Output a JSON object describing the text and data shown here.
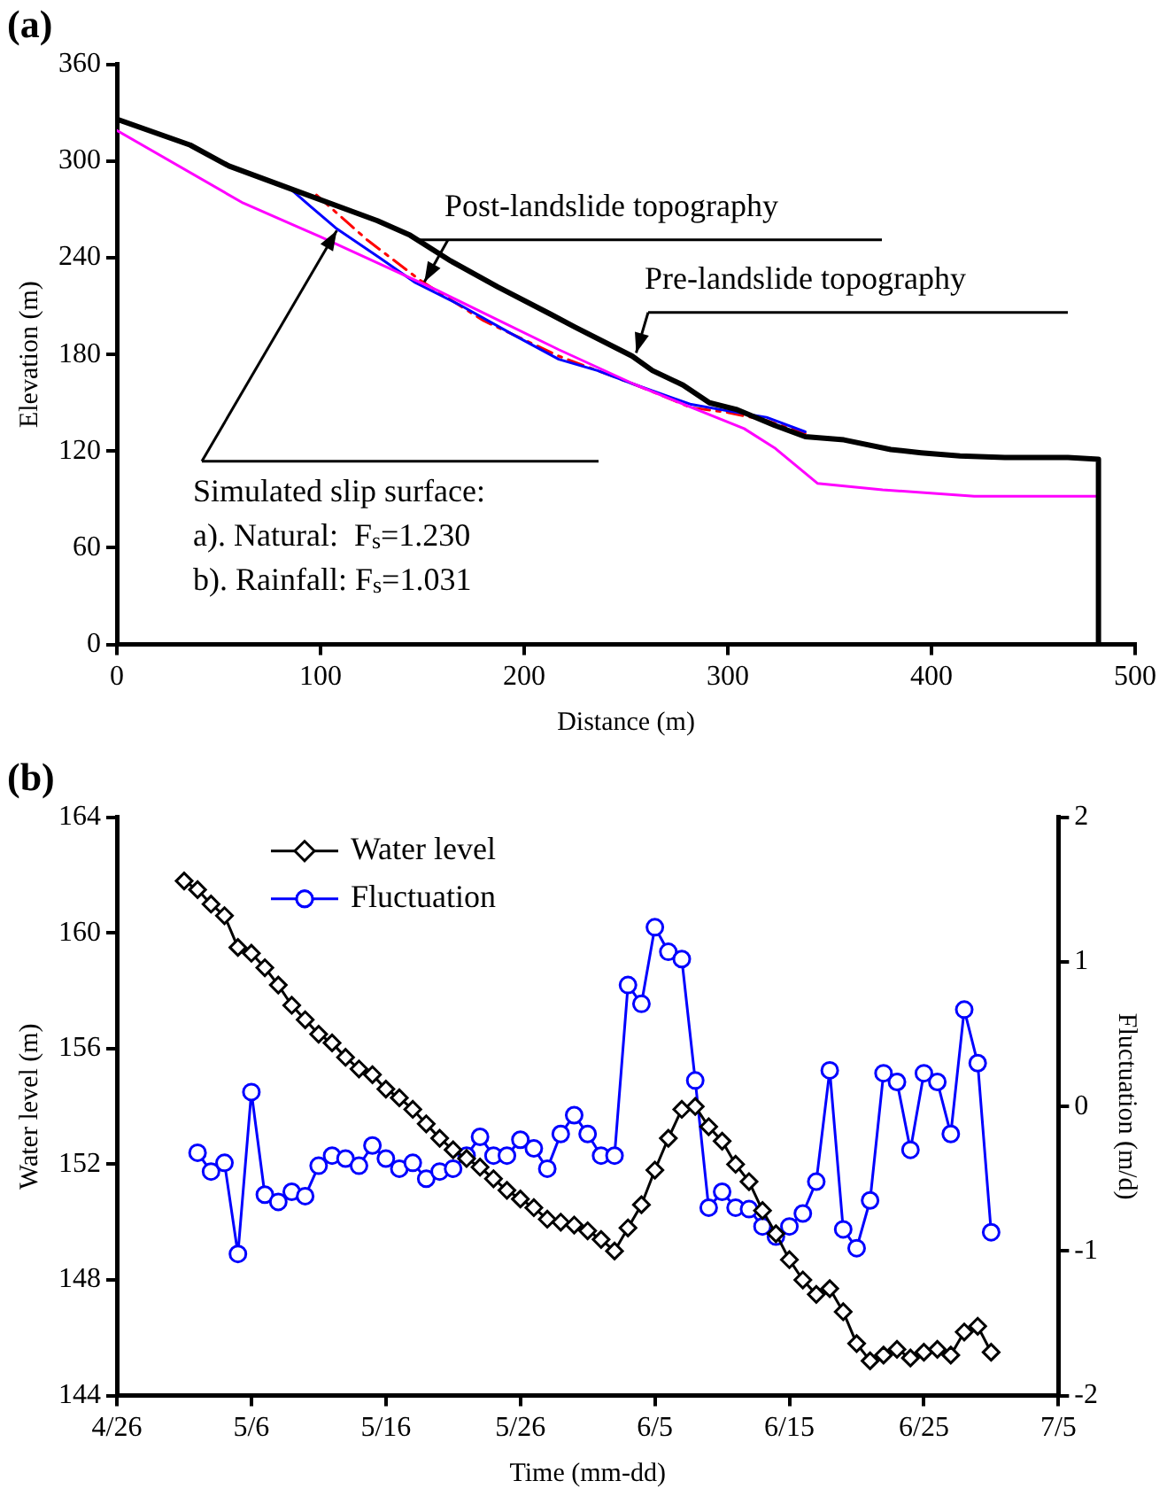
{
  "chart_data": [
    {
      "type": "line",
      "title": "(a)",
      "xlabel": "Distance (m)",
      "ylabel": "Elevation (m)",
      "xlim": [
        0,
        500
      ],
      "xticks": [
        0,
        100,
        200,
        300,
        400,
        500
      ],
      "ylim": [
        0,
        360
      ],
      "yticks": [
        0,
        60,
        120,
        180,
        240,
        300,
        360
      ],
      "grid": false,
      "legend": false,
      "marker": "none",
      "series": [
        {
          "color": "#000000",
          "x": [
            0,
            36,
            55,
            85,
            128,
            144,
            164,
            187,
            213,
            225,
            253,
            263,
            278,
            291,
            304,
            323,
            338,
            357,
            380,
            395,
            414,
            436,
            467,
            482,
            482
          ],
          "values": [
            326,
            310,
            297,
            283,
            263,
            254,
            238,
            222,
            205,
            197,
            179,
            170,
            161,
            150,
            146,
            136,
            129,
            127,
            121,
            119,
            117,
            116,
            116,
            115,
            0
          ]
        },
        {
          "color": "#ff00ff",
          "x": [
            0,
            62,
            100,
            157,
            217,
            255,
            308,
            323,
            344,
            376,
            421,
            482
          ],
          "values": [
            319,
            274,
            253,
            220,
            183,
            161,
            134,
            122,
            100,
            96,
            92,
            92
          ]
        },
        {
          "color": "#0000ff",
          "x": [
            85,
            95,
            108,
            129,
            146,
            168,
            195,
            217,
            236,
            255,
            282,
            300,
            319,
            338
          ],
          "values": [
            283,
            272,
            258,
            240,
            225,
            211,
            192,
            177,
            170,
            161,
            149,
            145,
            141,
            132
          ]
        },
        {
          "color": "#ff0000",
          "line_style": "dashed",
          "x": [
            98,
            123,
            149,
            180,
            217,
            255,
            282,
            300,
            319,
            338
          ],
          "values": [
            279,
            251,
            226,
            201,
            179,
            161,
            147,
            144,
            139,
            131
          ]
        }
      ],
      "annotations": [
        {
          "text": "Post-landslide topography",
          "x": 151,
          "y": 225
        },
        {
          "text": "Pre-landslide topography",
          "x": 255,
          "y": 181
        },
        {
          "text": "Simulated slip surface:\na). Natural:  F$_{s}$=1.230\nb). Rainfall: F$_{s}$=1.031",
          "x": 108,
          "y": 257
        }
      ]
    },
    {
      "type": "line",
      "title": "(b)",
      "xlabel": "Time (mm-dd)",
      "ylabel": "Water level (m)",
      "y2label": "Fluctuation (m/d)",
      "xlim": [
        "--04-26",
        "--07-05"
      ],
      "xticks": [
        {
          "value": "--04-26",
          "label": "4/26"
        },
        {
          "value": "--05-06",
          "label": "5/6"
        },
        {
          "value": "--05-16",
          "label": "5/16"
        },
        {
          "value": "--05-26",
          "label": "5/26"
        },
        {
          "value": "--06-05",
          "label": "6/5"
        },
        {
          "value": "--06-15",
          "label": "6/15"
        },
        {
          "value": "--06-25",
          "label": "6/25"
        },
        {
          "value": "--07-05",
          "label": "7/5"
        }
      ],
      "ylim": [
        144,
        164
      ],
      "yticks": [
        144,
        148,
        152,
        156,
        160,
        164
      ],
      "y2lim": [
        -2,
        2
      ],
      "y2ticks": [
        -2,
        -1,
        0,
        1,
        2
      ],
      "grid": false,
      "legend": "top left",
      "x": [
        "--05-01",
        "--05-02",
        "--05-03",
        "--05-04",
        "--05-05",
        "--05-06",
        "--05-07",
        "--05-08",
        "--05-09",
        "--05-10",
        "--05-11",
        "--05-12",
        "--05-13",
        "--05-14",
        "--05-15",
        "--05-16",
        "--05-17",
        "--05-18",
        "--05-19",
        "--05-20",
        "--05-21",
        "--05-22",
        "--05-23",
        "--05-24",
        "--05-25",
        "--05-26",
        "--05-27",
        "--05-28",
        "--05-29",
        "--05-30",
        "--05-31",
        "--06-01",
        "--06-02",
        "--06-03",
        "--06-04",
        "--06-05",
        "--06-06",
        "--06-07",
        "--06-08",
        "--06-09",
        "--06-10",
        "--06-11",
        "--06-12",
        "--06-13",
        "--06-14",
        "--06-15",
        "--06-16",
        "--06-17",
        "--06-18",
        "--06-19",
        "--06-20",
        "--06-21",
        "--06-22",
        "--06-23",
        "--06-24",
        "--06-25",
        "--06-26",
        "--06-27",
        "--06-28",
        "--06-29",
        "--06-30"
      ],
      "series": [
        {
          "name": "Water level",
          "color": "#000000",
          "marker": "diamond",
          "values": [
            161.8,
            161.5,
            161.0,
            160.6,
            159.5,
            159.3,
            158.8,
            158.2,
            157.5,
            157.0,
            156.5,
            156.2,
            155.7,
            155.3,
            155.1,
            154.6,
            154.3,
            153.9,
            153.4,
            152.9,
            152.5,
            152.2,
            151.9,
            151.5,
            151.1,
            150.8,
            150.5,
            150.1,
            150.0,
            149.9,
            149.7,
            149.4,
            149.0,
            149.8,
            150.6,
            151.8,
            152.9,
            153.9,
            154.0,
            153.3,
            152.8,
            152.0,
            151.4,
            150.4,
            149.6,
            148.7,
            148.0,
            147.5,
            147.7,
            146.9,
            145.8,
            145.2,
            145.4,
            145.6,
            145.3,
            145.5,
            145.6,
            145.4,
            146.2,
            146.4,
            145.5
          ]
        },
        {
          "name": "Fluctuation",
          "color": "#0000ff",
          "marker": "circle",
          "axis": "y2",
          "values": [
            null,
            -0.32,
            -0.45,
            -0.39,
            -1.02,
            0.1,
            -0.61,
            -0.66,
            -0.59,
            -0.62,
            -0.41,
            -0.34,
            -0.36,
            -0.41,
            -0.27,
            -0.36,
            -0.43,
            -0.39,
            -0.5,
            -0.45,
            -0.43,
            -0.34,
            -0.21,
            -0.34,
            -0.34,
            -0.23,
            -0.29,
            -0.43,
            -0.19,
            -0.06,
            -0.19,
            -0.34,
            -0.34,
            0.84,
            0.71,
            1.24,
            1.07,
            1.02,
            0.18,
            -0.7,
            -0.59,
            -0.7,
            -0.71,
            -0.83,
            -0.9,
            -0.83,
            -0.74,
            -0.52,
            0.25,
            -0.85,
            -0.98,
            -0.65,
            0.23,
            0.17,
            -0.3,
            0.23,
            0.17,
            -0.19,
            0.67,
            0.3,
            -0.87
          ]
        }
      ]
    }
  ]
}
